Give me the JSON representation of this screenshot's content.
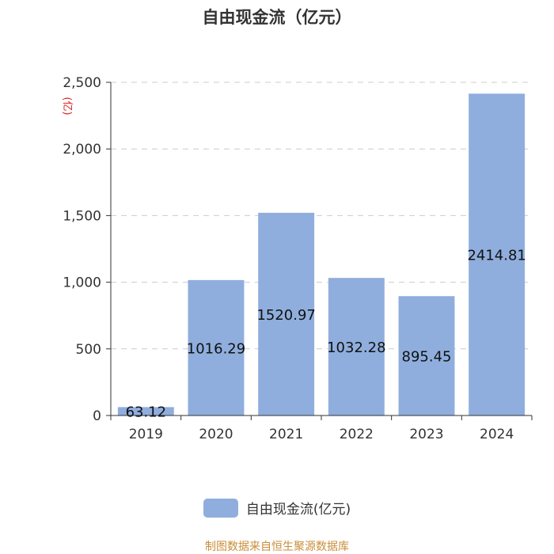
{
  "chart_data": {
    "type": "bar",
    "title": "自由现金流（亿元）",
    "ylabel": "(亿)",
    "categories": [
      "2019",
      "2020",
      "2021",
      "2022",
      "2023",
      "2024"
    ],
    "series": [
      {
        "name": "自由现金流(亿元)",
        "values": [
          63.12,
          1016.29,
          1520.97,
          1032.28,
          895.45,
          2414.81
        ],
        "labels": [
          "63.12",
          "1016.29",
          "1520.97",
          "1032.28",
          "895.45",
          "2414.81"
        ]
      }
    ],
    "ylim": [
      0,
      2500
    ],
    "yticks": [
      0,
      500,
      1000,
      1500,
      2000,
      2500
    ],
    "ytick_labels": [
      "0",
      "500",
      "1,000",
      "1,500",
      "2,000",
      "2,500"
    ],
    "grid": true,
    "legend_position": "bottom-center",
    "colors": {
      "bar": "#8faedd",
      "ylabel": "#e02020",
      "grid": "#cccccc",
      "source": "#c98e3a"
    }
  },
  "source_note": "制图数据来自恒生聚源数据库"
}
